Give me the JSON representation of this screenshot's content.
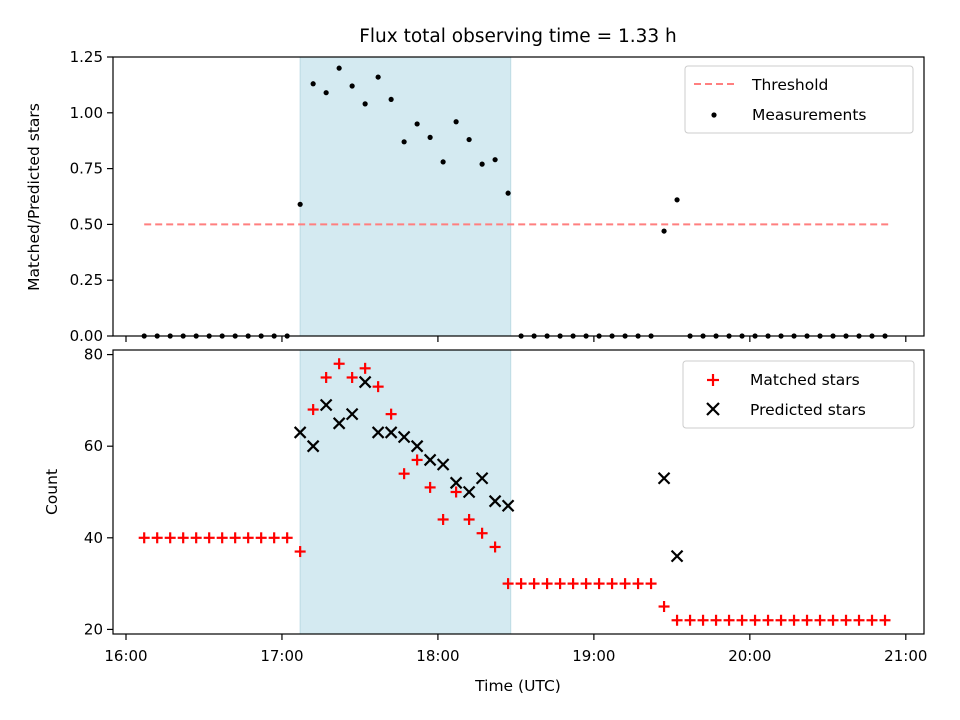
{
  "chart_data": [
    {
      "type": "scatter",
      "title": "Flux total observing time = 1.33 h",
      "xlabel": "",
      "ylabel": "Matched/Predicted stars",
      "xlim": [
        "16:00",
        "21:00"
      ],
      "ylim": [
        0,
        1.25
      ],
      "yticks": [
        "0.00",
        "0.25",
        "0.50",
        "0.75",
        "1.00",
        "1.25"
      ],
      "shaded_region": {
        "start": "17:07",
        "end": "18:28",
        "color": "#d4eaf1"
      },
      "threshold": {
        "name": "Threshold",
        "value": 0.5,
        "x_start": "16:07",
        "x_end": "20:54",
        "color": "#ff7f7f"
      },
      "legend_position": "top-right",
      "series": [
        {
          "name": "Measurements",
          "color": "#000000",
          "x": [
            "16:07",
            "16:12",
            "16:17",
            "16:22",
            "16:27",
            "16:32",
            "16:37",
            "16:42",
            "16:47",
            "16:52",
            "16:57",
            "17:02",
            "17:07",
            "17:12",
            "17:17",
            "17:22",
            "17:27",
            "17:32",
            "17:37",
            "17:42",
            "17:47",
            "17:52",
            "17:57",
            "18:02",
            "18:07",
            "18:12",
            "18:17",
            "18:22",
            "18:27",
            "18:32",
            "18:37",
            "18:42",
            "18:47",
            "18:52",
            "18:57",
            "19:02",
            "19:07",
            "19:12",
            "19:17",
            "19:22",
            "19:27",
            "19:32",
            "19:37",
            "19:42",
            "19:47",
            "19:52",
            "19:57",
            "20:02",
            "20:07",
            "20:12",
            "20:17",
            "20:22",
            "20:27",
            "20:32",
            "20:37",
            "20:42",
            "20:47",
            "20:52"
          ],
          "y": [
            0,
            0,
            0,
            0,
            0,
            0,
            0,
            0,
            0,
            0,
            0,
            0,
            0.59,
            1.13,
            1.09,
            1.2,
            1.12,
            1.04,
            1.16,
            1.06,
            0.87,
            0.95,
            0.89,
            0.78,
            0.96,
            0.88,
            0.77,
            0.79,
            0.64,
            0,
            0,
            0,
            0,
            0,
            0,
            0,
            0,
            0,
            0,
            0,
            0.47,
            0.61,
            0,
            0,
            0,
            0,
            0,
            0,
            0,
            0,
            0,
            0,
            0,
            0,
            0,
            0,
            0,
            0
          ]
        }
      ]
    },
    {
      "type": "scatter",
      "title": "",
      "xlabel": "Time (UTC)",
      "ylabel": "Count",
      "xlim": [
        "16:00",
        "21:00"
      ],
      "ylim": [
        20,
        80
      ],
      "xticks": [
        "16:00",
        "17:00",
        "18:00",
        "19:00",
        "20:00",
        "21:00"
      ],
      "yticks": [
        "20",
        "40",
        "60",
        "80"
      ],
      "shaded_region": {
        "start": "17:07",
        "end": "18:28",
        "color": "#d4eaf1"
      },
      "legend_position": "top-right",
      "series": [
        {
          "name": "Matched stars",
          "marker": "plus",
          "color": "#ff0000",
          "x": [
            "16:07",
            "16:12",
            "16:17",
            "16:22",
            "16:27",
            "16:32",
            "16:37",
            "16:42",
            "16:47",
            "16:52",
            "16:57",
            "17:02",
            "17:07",
            "17:12",
            "17:17",
            "17:22",
            "17:27",
            "17:32",
            "17:37",
            "17:42",
            "17:47",
            "17:52",
            "17:57",
            "18:02",
            "18:07",
            "18:12",
            "18:17",
            "18:22",
            "18:27",
            "18:32",
            "18:37",
            "18:42",
            "18:47",
            "18:52",
            "18:57",
            "19:02",
            "19:07",
            "19:12",
            "19:17",
            "19:22",
            "19:27",
            "19:32",
            "19:37",
            "19:42",
            "19:47",
            "19:52",
            "19:57",
            "20:02",
            "20:07",
            "20:12",
            "20:17",
            "20:22",
            "20:27",
            "20:32",
            "20:37",
            "20:42",
            "20:47",
            "20:52"
          ],
          "y": [
            40,
            40,
            40,
            40,
            40,
            40,
            40,
            40,
            40,
            40,
            40,
            40,
            37,
            68,
            75,
            78,
            75,
            77,
            73,
            67,
            54,
            57,
            51,
            44,
            50,
            44,
            41,
            38,
            30,
            30,
            30,
            30,
            30,
            30,
            30,
            30,
            30,
            30,
            30,
            30,
            25,
            22,
            22,
            22,
            22,
            22,
            22,
            22,
            22,
            22,
            22,
            22,
            22,
            22,
            22,
            22,
            22,
            22
          ]
        },
        {
          "name": "Predicted stars",
          "marker": "x",
          "color": "#000000",
          "x": [
            "17:07",
            "17:12",
            "17:17",
            "17:22",
            "17:27",
            "17:32",
            "17:37",
            "17:42",
            "17:47",
            "17:52",
            "17:57",
            "18:02",
            "18:07",
            "18:12",
            "18:17",
            "18:22",
            "18:27",
            "19:27",
            "19:32"
          ],
          "y": [
            63,
            60,
            69,
            65,
            67,
            74,
            63,
            63,
            62,
            60,
            57,
            56,
            52,
            50,
            53,
            48,
            47,
            53,
            36
          ]
        }
      ]
    }
  ]
}
